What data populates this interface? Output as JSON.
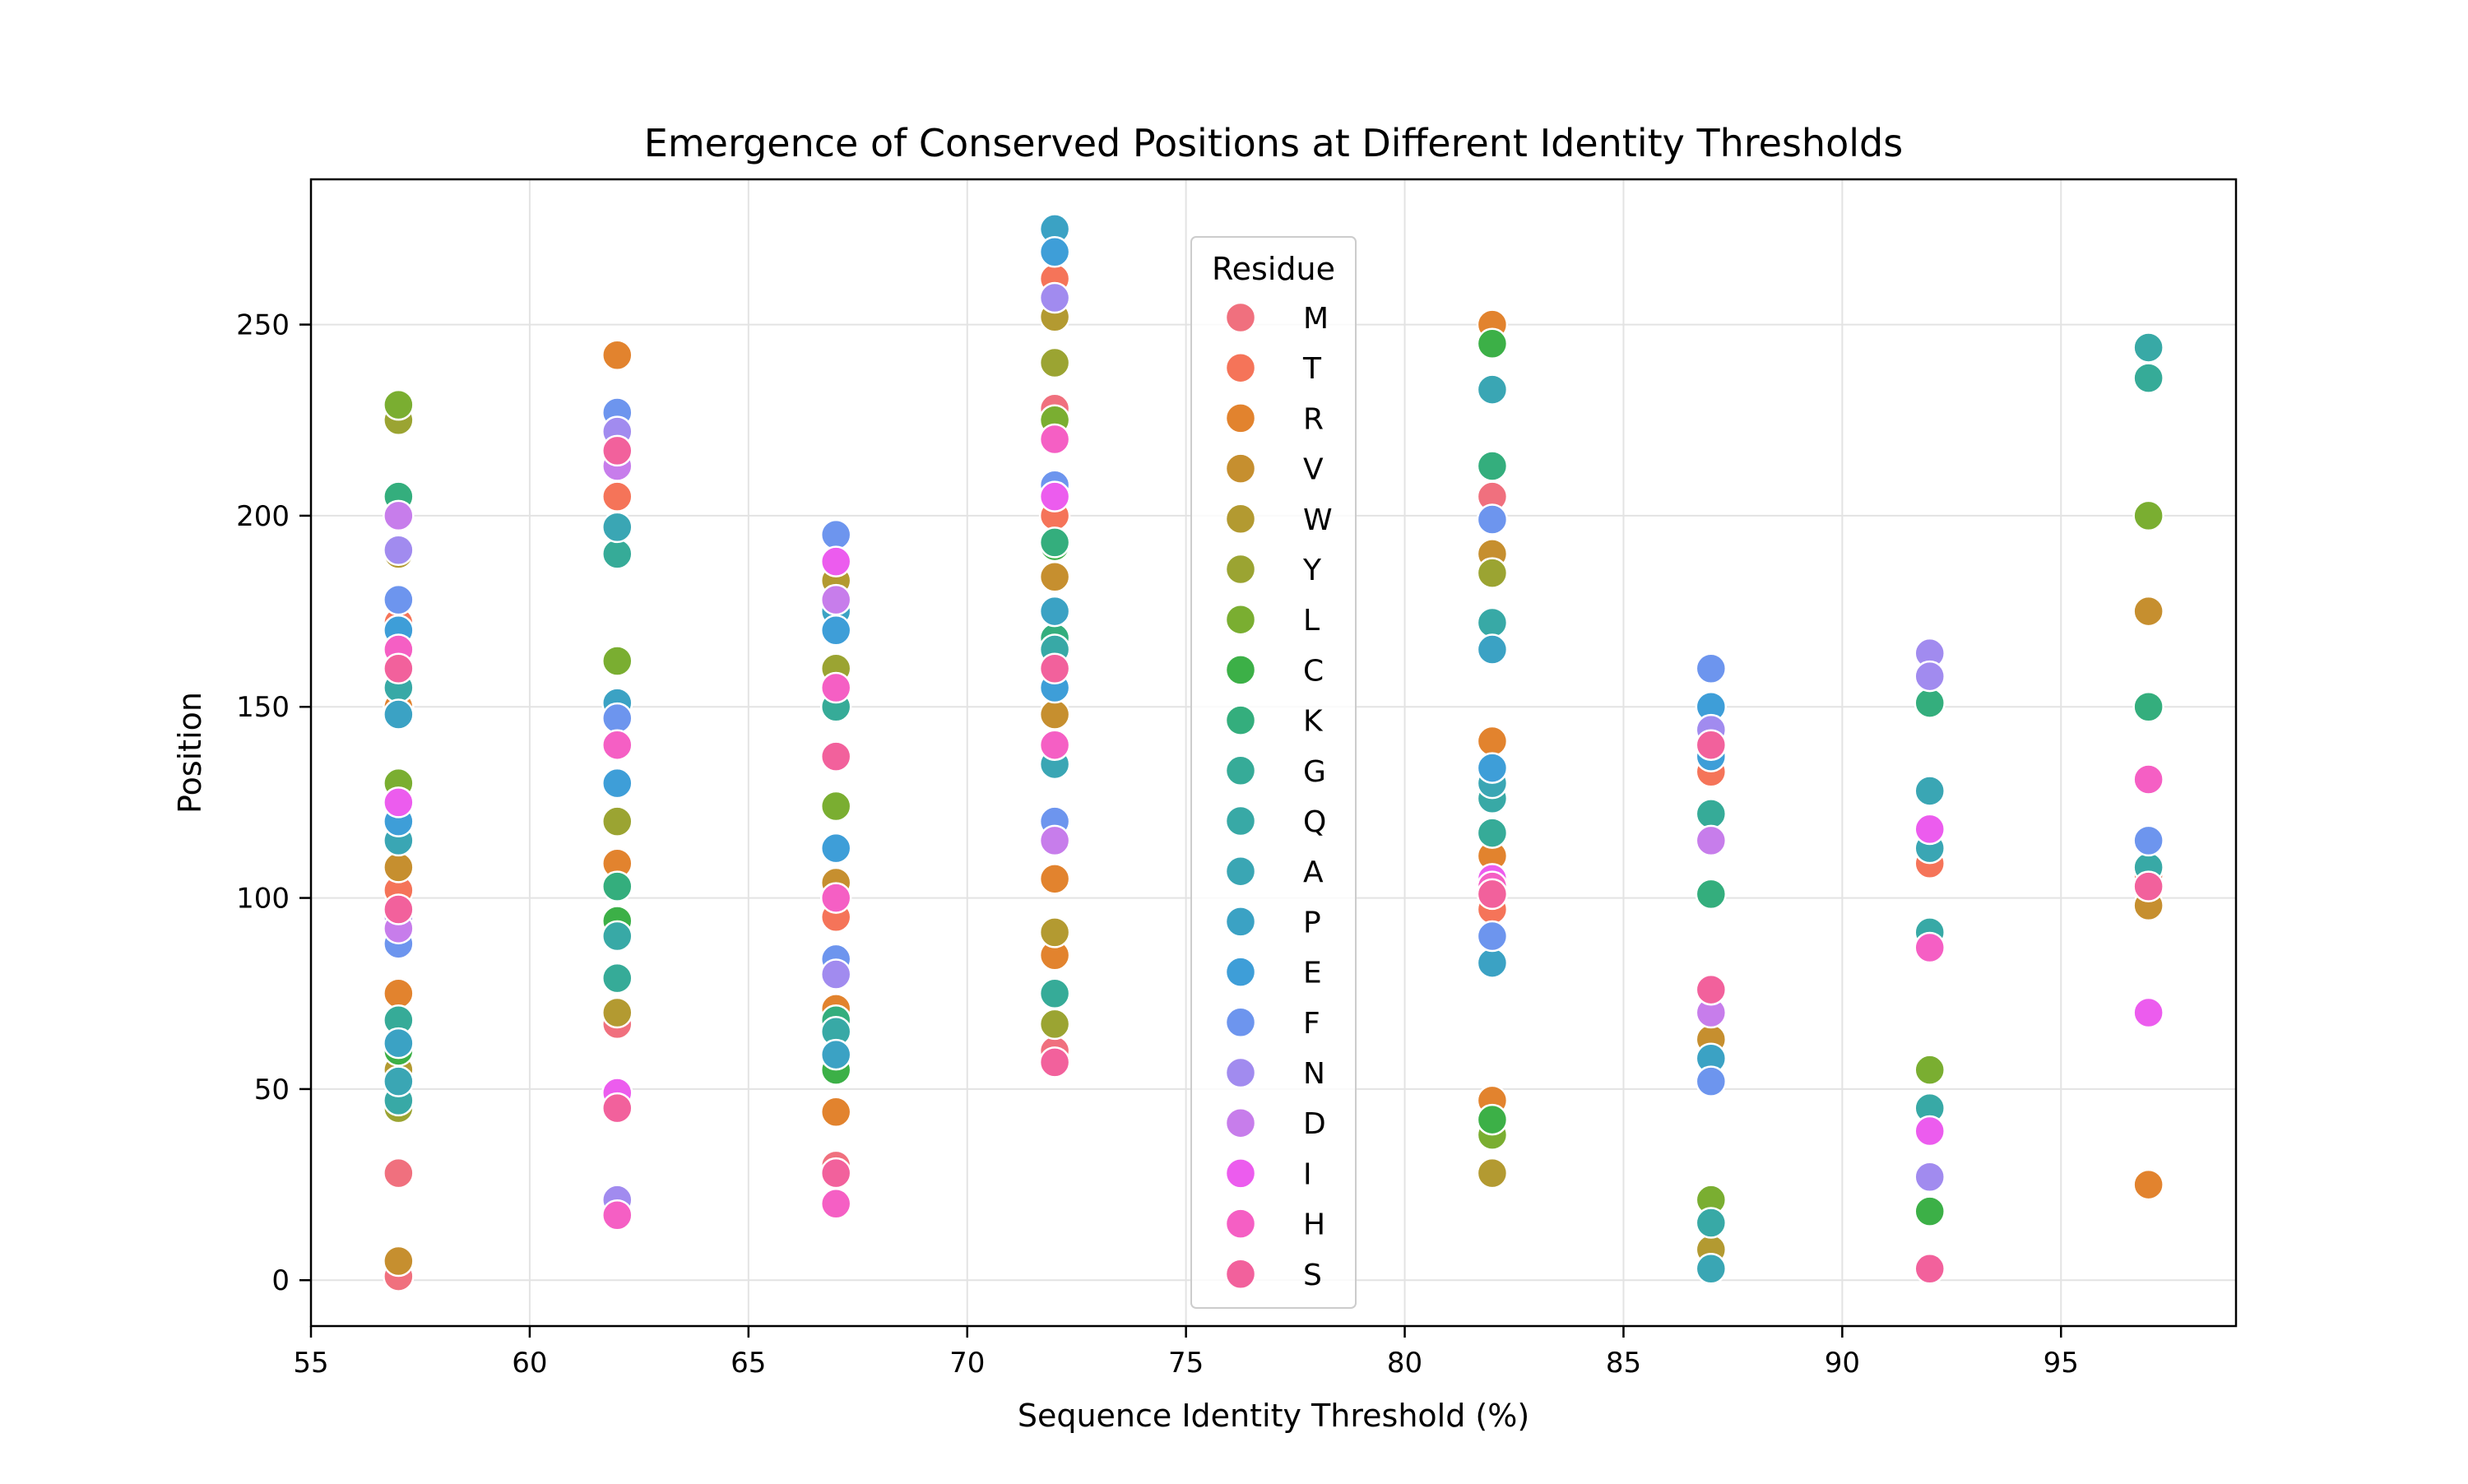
{
  "chart_data": {
    "type": "scatter",
    "title": "Emergence of Conserved Positions at Different Identity Thresholds",
    "xlabel": "Sequence Identity Threshold (%)",
    "ylabel": "Position",
    "xlim": [
      55,
      99
    ],
    "ylim": [
      -12,
      288
    ],
    "xticks": [
      55,
      60,
      65,
      70,
      75,
      80,
      85,
      90,
      95
    ],
    "yticks": [
      0,
      50,
      100,
      150,
      200,
      250
    ],
    "grid": true,
    "legend": {
      "title": "Residue",
      "placement": "upper-center"
    },
    "series": [
      {
        "name": "M",
        "color": "#f0707e",
        "points": [
          [
            57,
            28
          ],
          [
            57,
            1
          ],
          [
            62,
            67
          ],
          [
            67,
            30
          ],
          [
            72,
            60
          ],
          [
            72,
            228
          ],
          [
            82,
            205
          ],
          [
            92,
            87
          ]
        ]
      },
      {
        "name": "T",
        "color": "#f57459",
        "points": [
          [
            57,
            102
          ],
          [
            57,
            172
          ],
          [
            62,
            205
          ],
          [
            67,
            95
          ],
          [
            72,
            200
          ],
          [
            72,
            262
          ],
          [
            82,
            97
          ],
          [
            87,
            133
          ],
          [
            92,
            109
          ],
          [
            97,
            106
          ]
        ]
      },
      {
        "name": "R",
        "color": "#e2832e",
        "points": [
          [
            57,
            75
          ],
          [
            57,
            150
          ],
          [
            62,
            109
          ],
          [
            62,
            242
          ],
          [
            67,
            71
          ],
          [
            67,
            44
          ],
          [
            72,
            85
          ],
          [
            72,
            105
          ],
          [
            82,
            47
          ],
          [
            82,
            111
          ],
          [
            82,
            141
          ],
          [
            82,
            250
          ],
          [
            97,
            25
          ]
        ]
      },
      {
        "name": "V",
        "color": "#c68f2f",
        "points": [
          [
            57,
            5
          ],
          [
            57,
            108
          ],
          [
            62,
            215
          ],
          [
            67,
            104
          ],
          [
            72,
            148
          ],
          [
            72,
            184
          ],
          [
            82,
            190
          ],
          [
            87,
            63
          ],
          [
            97,
            98
          ],
          [
            97,
            175
          ]
        ]
      },
      {
        "name": "W",
        "color": "#b39a31",
        "points": [
          [
            57,
            55
          ],
          [
            57,
            190
          ],
          [
            62,
            70
          ],
          [
            67,
            183
          ],
          [
            72,
            91
          ],
          [
            72,
            252
          ],
          [
            82,
            28
          ],
          [
            87,
            8
          ]
        ]
      },
      {
        "name": "Y",
        "color": "#9ba432",
        "points": [
          [
            57,
            45
          ],
          [
            57,
            225
          ],
          [
            62,
            120
          ],
          [
            67,
            160
          ],
          [
            72,
            67
          ],
          [
            72,
            240
          ],
          [
            82,
            185
          ],
          [
            92,
            55
          ]
        ]
      },
      {
        "name": "L",
        "color": "#7aae31",
        "points": [
          [
            57,
            130
          ],
          [
            57,
            229
          ],
          [
            62,
            162
          ],
          [
            67,
            124
          ],
          [
            72,
            225
          ],
          [
            82,
            38
          ],
          [
            87,
            21
          ],
          [
            92,
            55
          ],
          [
            97,
            200
          ]
        ]
      },
      {
        "name": "C",
        "color": "#3cb047",
        "points": [
          [
            57,
            60
          ],
          [
            62,
            94
          ],
          [
            67,
            55
          ],
          [
            72,
            192
          ],
          [
            82,
            245
          ],
          [
            82,
            42
          ],
          [
            92,
            18
          ]
        ]
      },
      {
        "name": "K",
        "color": "#34ae7d",
        "points": [
          [
            57,
            205
          ],
          [
            57,
            165
          ],
          [
            62,
            103
          ],
          [
            67,
            68
          ],
          [
            72,
            193
          ],
          [
            72,
            168
          ],
          [
            82,
            213
          ],
          [
            87,
            101
          ],
          [
            92,
            151
          ],
          [
            97,
            150
          ]
        ]
      },
      {
        "name": "G",
        "color": "#36ab98",
        "points": [
          [
            57,
            68
          ],
          [
            62,
            190
          ],
          [
            62,
            79
          ],
          [
            67,
            150
          ],
          [
            72,
            75
          ],
          [
            82,
            117
          ],
          [
            87,
            122
          ],
          [
            97,
            236
          ]
        ]
      },
      {
        "name": "Q",
        "color": "#38a9a6",
        "points": [
          [
            57,
            47
          ],
          [
            57,
            155
          ],
          [
            62,
            90
          ],
          [
            67,
            65
          ],
          [
            72,
            165
          ],
          [
            82,
            126
          ],
          [
            82,
            172
          ],
          [
            87,
            15
          ],
          [
            92,
            91
          ],
          [
            92,
            45
          ],
          [
            97,
            244
          ],
          [
            97,
            108
          ]
        ]
      },
      {
        "name": "A",
        "color": "#3aa6b4",
        "points": [
          [
            57,
            52
          ],
          [
            57,
            115
          ],
          [
            62,
            197
          ],
          [
            67,
            113
          ],
          [
            72,
            135
          ],
          [
            82,
            130
          ],
          [
            82,
            233
          ],
          [
            87,
            3
          ],
          [
            92,
            128
          ],
          [
            92,
            113
          ]
        ]
      },
      {
        "name": "P",
        "color": "#3ba2c4",
        "points": [
          [
            57,
            148
          ],
          [
            57,
            62
          ],
          [
            62,
            151
          ],
          [
            67,
            59
          ],
          [
            67,
            175
          ],
          [
            72,
            275
          ],
          [
            72,
            175
          ],
          [
            82,
            83
          ],
          [
            82,
            165
          ],
          [
            87,
            58
          ]
        ]
      },
      {
        "name": "E",
        "color": "#3e9ed8",
        "points": [
          [
            57,
            120
          ],
          [
            57,
            170
          ],
          [
            62,
            130
          ],
          [
            67,
            113
          ],
          [
            67,
            170
          ],
          [
            72,
            269
          ],
          [
            72,
            155
          ],
          [
            82,
            134
          ],
          [
            87,
            150
          ],
          [
            87,
            137
          ]
        ]
      },
      {
        "name": "F",
        "color": "#6d95ee",
        "points": [
          [
            57,
            88
          ],
          [
            57,
            178
          ],
          [
            62,
            227
          ],
          [
            62,
            147
          ],
          [
            67,
            84
          ],
          [
            67,
            195
          ],
          [
            72,
            208
          ],
          [
            72,
            120
          ],
          [
            82,
            90
          ],
          [
            82,
            199
          ],
          [
            87,
            160
          ],
          [
            87,
            52
          ],
          [
            97,
            115
          ]
        ]
      },
      {
        "name": "N",
        "color": "#a18bef",
        "points": [
          [
            57,
            191
          ],
          [
            57,
            95
          ],
          [
            62,
            21
          ],
          [
            62,
            222
          ],
          [
            67,
            80
          ],
          [
            72,
            257
          ],
          [
            87,
            144
          ],
          [
            92,
            27
          ],
          [
            92,
            164
          ],
          [
            92,
            158
          ]
        ]
      },
      {
        "name": "D",
        "color": "#c77deb",
        "points": [
          [
            57,
            200
          ],
          [
            57,
            92
          ],
          [
            62,
            213
          ],
          [
            67,
            178
          ],
          [
            72,
            115
          ],
          [
            87,
            115
          ],
          [
            87,
            70
          ],
          [
            92,
            118
          ]
        ]
      },
      {
        "name": "I",
        "color": "#ec5cee",
        "points": [
          [
            57,
            125
          ],
          [
            62,
            49
          ],
          [
            67,
            188
          ],
          [
            72,
            205
          ],
          [
            82,
            105
          ],
          [
            92,
            39
          ],
          [
            92,
            118
          ],
          [
            97,
            70
          ]
        ]
      },
      {
        "name": "H",
        "color": "#f55fc4",
        "points": [
          [
            57,
            165
          ],
          [
            62,
            17
          ],
          [
            62,
            140
          ],
          [
            67,
            20
          ],
          [
            67,
            100
          ],
          [
            67,
            155
          ],
          [
            72,
            140
          ],
          [
            72,
            220
          ],
          [
            82,
            103
          ],
          [
            87,
            76
          ],
          [
            92,
            87
          ],
          [
            97,
            131
          ]
        ]
      },
      {
        "name": "S",
        "color": "#f2619c",
        "points": [
          [
            57,
            97
          ],
          [
            57,
            160
          ],
          [
            62,
            45
          ],
          [
            62,
            217
          ],
          [
            67,
            137
          ],
          [
            67,
            28
          ],
          [
            72,
            57
          ],
          [
            72,
            160
          ],
          [
            82,
            101
          ],
          [
            87,
            76
          ],
          [
            87,
            140
          ],
          [
            92,
            3
          ],
          [
            97,
            103
          ]
        ]
      }
    ]
  }
}
